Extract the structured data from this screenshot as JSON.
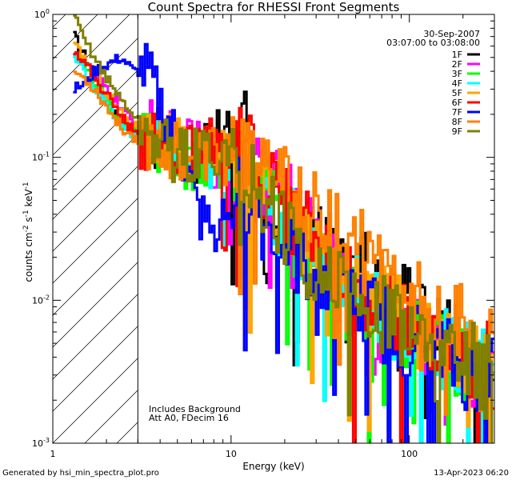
{
  "chart_data": {
    "type": "line",
    "title": "Count Spectra for RHESSI Front Segments",
    "xlabel": "Energy (keV)",
    "ylabel_parts": [
      "counts cm",
      "-2",
      " s",
      "-1",
      " keV",
      "-1"
    ],
    "x_scale": "log",
    "y_scale": "log",
    "xlim": [
      1.0,
      300.0
    ],
    "ylim": [
      0.001,
      1.0
    ],
    "x_ticks": [
      {
        "value": 1,
        "label": "1"
      },
      {
        "value": 10,
        "label": "10"
      },
      {
        "value": 100,
        "label": "100"
      }
    ],
    "y_ticks": [
      {
        "value": 0.001,
        "base": "10",
        "exp": "-3"
      },
      {
        "value": 0.01,
        "base": "10",
        "exp": "-2"
      },
      {
        "value": 0.1,
        "base": "10",
        "exp": "-1"
      },
      {
        "value": 1,
        "base": "10",
        "exp": "0"
      }
    ],
    "hatched_region_xmax": 3.0,
    "date_label": "30-Sep-2007",
    "time_range_label": "03:07:00 to 03:08:00",
    "annotations": [
      "Includes Background",
      "Att A0, FDecim 16"
    ],
    "series": [
      {
        "name": "1F",
        "color": "#000000",
        "values": [
          [
            1.3,
            0.7
          ],
          [
            1.5,
            0.5
          ],
          [
            1.7,
            0.4
          ],
          [
            2.0,
            0.25
          ],
          [
            2.4,
            0.18
          ],
          [
            2.8,
            0.16
          ],
          [
            3.3,
            0.14
          ],
          [
            4.2,
            0.13
          ],
          [
            5.2,
            0.11
          ],
          [
            6.5,
            0.1
          ],
          [
            8.0,
            0.13
          ],
          [
            10,
            0.14
          ],
          [
            12,
            0.15
          ],
          [
            15,
            0.07
          ],
          [
            20,
            0.045
          ],
          [
            26,
            0.03
          ],
          [
            35,
            0.022
          ],
          [
            45,
            0.018
          ],
          [
            60,
            0.014
          ],
          [
            80,
            0.01
          ],
          [
            100,
            0.0085
          ],
          [
            130,
            0.0065
          ],
          [
            170,
            0.0055
          ],
          [
            220,
            0.0045
          ],
          [
            300,
            0.0038
          ]
        ]
      },
      {
        "name": "2F",
        "color": "#ff00ff",
        "values": [
          [
            1.3,
            0.55
          ],
          [
            1.5,
            0.42
          ],
          [
            1.7,
            0.36
          ],
          [
            2.0,
            0.3
          ],
          [
            2.4,
            0.22
          ],
          [
            2.8,
            0.17
          ],
          [
            3.3,
            0.16
          ],
          [
            4.2,
            0.14
          ],
          [
            5.2,
            0.12
          ],
          [
            6.5,
            0.11
          ],
          [
            8.0,
            0.1
          ],
          [
            10,
            0.1
          ],
          [
            12,
            0.09
          ],
          [
            15,
            0.07
          ],
          [
            20,
            0.05
          ],
          [
            26,
            0.03
          ],
          [
            35,
            0.02
          ],
          [
            45,
            0.015
          ],
          [
            60,
            0.0045
          ],
          [
            80,
            0.009
          ],
          [
            100,
            0.006
          ],
          [
            130,
            0.005
          ],
          [
            170,
            0.0045
          ],
          [
            220,
            0.0035
          ],
          [
            300,
            0.003
          ]
        ]
      },
      {
        "name": "3F",
        "color": "#00ff00",
        "values": [
          [
            1.3,
            0.52
          ],
          [
            1.5,
            0.4
          ],
          [
            1.7,
            0.33
          ],
          [
            2.0,
            0.24
          ],
          [
            2.4,
            0.17
          ],
          [
            2.8,
            0.15
          ],
          [
            3.3,
            0.13
          ],
          [
            4.2,
            0.12
          ],
          [
            5.2,
            0.1
          ],
          [
            6.5,
            0.09
          ],
          [
            8.0,
            0.1
          ],
          [
            10,
            0.09
          ],
          [
            12,
            0.08
          ],
          [
            15,
            0.06
          ],
          [
            20,
            0.035
          ],
          [
            26,
            0.02
          ],
          [
            35,
            0.012
          ],
          [
            45,
            0.01
          ],
          [
            60,
            0.008
          ],
          [
            80,
            0.0065
          ],
          [
            100,
            0.0055
          ],
          [
            130,
            0.0045
          ],
          [
            170,
            0.004
          ],
          [
            220,
            0.0032
          ],
          [
            300,
            0.0027
          ]
        ]
      },
      {
        "name": "4F",
        "color": "#00ffff",
        "values": [
          [
            1.3,
            0.5
          ],
          [
            1.5,
            0.38
          ],
          [
            1.7,
            0.31
          ],
          [
            2.0,
            0.23
          ],
          [
            2.4,
            0.16
          ],
          [
            2.8,
            0.14
          ],
          [
            3.3,
            0.12
          ],
          [
            4.2,
            0.11
          ],
          [
            5.2,
            0.1
          ],
          [
            6.5,
            0.09
          ],
          [
            8.0,
            0.09
          ],
          [
            10,
            0.085
          ],
          [
            12,
            0.08
          ],
          [
            15,
            0.055
          ],
          [
            20,
            0.038
          ],
          [
            26,
            0.025
          ],
          [
            35,
            0.016
          ],
          [
            45,
            0.012
          ],
          [
            60,
            0.0095
          ],
          [
            80,
            0.0075
          ],
          [
            100,
            0.006
          ],
          [
            130,
            0.005
          ],
          [
            170,
            0.0042
          ],
          [
            220,
            0.0035
          ],
          [
            300,
            0.003
          ]
        ]
      },
      {
        "name": "5F",
        "color": "#ffa500",
        "values": [
          [
            1.3,
            0.6
          ],
          [
            1.5,
            0.48
          ],
          [
            1.7,
            0.38
          ],
          [
            2.0,
            0.28
          ],
          [
            2.4,
            0.2
          ],
          [
            2.8,
            0.17
          ],
          [
            3.3,
            0.15
          ],
          [
            4.2,
            0.13
          ],
          [
            5.2,
            0.11
          ],
          [
            6.5,
            0.1
          ],
          [
            8.0,
            0.1
          ],
          [
            10,
            0.09
          ],
          [
            12,
            0.08
          ],
          [
            15,
            0.06
          ],
          [
            20,
            0.04
          ],
          [
            26,
            0.028
          ],
          [
            35,
            0.018
          ],
          [
            45,
            0.013
          ],
          [
            60,
            0.01
          ],
          [
            80,
            0.008
          ],
          [
            100,
            0.0065
          ],
          [
            130,
            0.0052
          ],
          [
            170,
            0.0045
          ],
          [
            220,
            0.0038
          ],
          [
            300,
            0.0032
          ]
        ]
      },
      {
        "name": "6F",
        "color": "#ff0000",
        "values": [
          [
            1.3,
            0.58
          ],
          [
            1.5,
            0.45
          ],
          [
            1.7,
            0.36
          ],
          [
            2.0,
            0.27
          ],
          [
            2.4,
            0.19
          ],
          [
            2.8,
            0.15
          ],
          [
            3.3,
            0.13
          ],
          [
            4.2,
            0.12
          ],
          [
            5.2,
            0.11
          ],
          [
            6.5,
            0.1
          ],
          [
            8.0,
            0.12
          ],
          [
            10,
            0.13
          ],
          [
            12,
            0.11
          ],
          [
            15,
            0.07
          ],
          [
            20,
            0.045
          ],
          [
            26,
            0.03
          ],
          [
            35,
            0.02
          ],
          [
            45,
            0.015
          ],
          [
            60,
            0.011
          ],
          [
            80,
            0.009
          ],
          [
            100,
            0.0072
          ],
          [
            130,
            0.0058
          ],
          [
            170,
            0.0048
          ],
          [
            220,
            0.004
          ],
          [
            300,
            0.0034
          ]
        ]
      },
      {
        "name": "7F",
        "color": "#0000ff",
        "values": [
          [
            1.3,
            0.3
          ],
          [
            1.5,
            0.33
          ],
          [
            1.7,
            0.4
          ],
          [
            2.0,
            0.45
          ],
          [
            2.4,
            0.5
          ],
          [
            2.8,
            0.4
          ],
          [
            3.3,
            0.4
          ],
          [
            4.2,
            0.2
          ],
          [
            5.2,
            0.11
          ],
          [
            6.5,
            0.04
          ],
          [
            8.0,
            0.03
          ],
          [
            10,
            0.05
          ],
          [
            12,
            0.06
          ],
          [
            15,
            0.035
          ],
          [
            20,
            0.025
          ],
          [
            26,
            0.018
          ],
          [
            35,
            0.013
          ],
          [
            45,
            0.01
          ],
          [
            60,
            0.008
          ],
          [
            80,
            0.0065
          ],
          [
            100,
            0.0055
          ],
          [
            130,
            0.0045
          ],
          [
            170,
            0.0038
          ],
          [
            220,
            0.0032
          ],
          [
            300,
            0.0028
          ]
        ]
      },
      {
        "name": "8F",
        "color": "#ff8000",
        "values": [
          [
            1.3,
            0.4
          ],
          [
            1.5,
            0.35
          ],
          [
            1.7,
            0.3
          ],
          [
            2.0,
            0.22
          ],
          [
            2.4,
            0.16
          ],
          [
            2.8,
            0.14
          ],
          [
            3.3,
            0.13
          ],
          [
            4.2,
            0.12
          ],
          [
            5.2,
            0.11
          ],
          [
            6.5,
            0.1
          ],
          [
            8.0,
            0.11
          ],
          [
            10,
            0.1
          ],
          [
            12,
            0.09
          ],
          [
            15,
            0.08
          ],
          [
            20,
            0.06
          ],
          [
            26,
            0.045
          ],
          [
            35,
            0.032
          ],
          [
            45,
            0.025
          ],
          [
            60,
            0.02
          ],
          [
            80,
            0.016
          ],
          [
            100,
            0.012
          ],
          [
            130,
            0.009
          ],
          [
            170,
            0.007
          ],
          [
            220,
            0.006
          ],
          [
            300,
            0.005
          ]
        ]
      },
      {
        "name": "9F",
        "color": "#808000",
        "values": [
          [
            1.3,
            0.95
          ],
          [
            1.5,
            0.65
          ],
          [
            1.7,
            0.5
          ],
          [
            2.0,
            0.35
          ],
          [
            2.4,
            0.25
          ],
          [
            2.8,
            0.2
          ],
          [
            3.3,
            0.15
          ],
          [
            4.2,
            0.12
          ],
          [
            5.2,
            0.1
          ],
          [
            6.5,
            0.1
          ],
          [
            8.0,
            0.12
          ],
          [
            10,
            0.11
          ],
          [
            12,
            0.09
          ],
          [
            15,
            0.05
          ],
          [
            20,
            0.03
          ],
          [
            26,
            0.02
          ],
          [
            35,
            0.014
          ],
          [
            45,
            0.011
          ],
          [
            60,
            0.0085
          ],
          [
            80,
            0.007
          ],
          [
            100,
            0.006
          ],
          [
            130,
            0.005
          ],
          [
            170,
            0.0042
          ],
          [
            220,
            0.0036
          ],
          [
            300,
            0.003
          ]
        ]
      }
    ]
  },
  "footer": {
    "generated_by": "Generated by hsi_min_spectra_plot.pro",
    "timestamp": "13-Apr-2023 06:20"
  }
}
